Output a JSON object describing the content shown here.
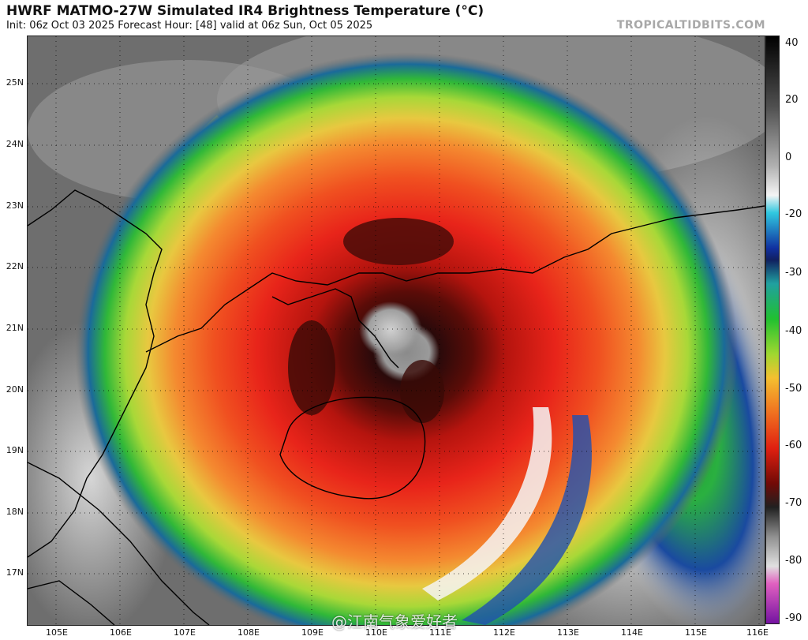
{
  "header": {
    "title": "HWRF MATMO-27W Simulated IR4 Brightness Temperature (°C)",
    "subtitle": "Init: 06z Oct 03 2025   Forecast Hour: [48]   valid at 06z Sun, Oct 05 2025",
    "brand": "TROPICALTIDBITS.COM"
  },
  "map": {
    "lat_labels": [
      "25N",
      "24N",
      "23N",
      "22N",
      "21N",
      "20N",
      "19N",
      "18N",
      "17N"
    ],
    "lon_labels": [
      "105E",
      "106E",
      "107E",
      "108E",
      "109E",
      "110E",
      "111E",
      "112E",
      "113E",
      "114E",
      "115E",
      "116E"
    ],
    "colors": {
      "background": "#6a6a6a",
      "coast": "#000000",
      "grid": "#000000"
    }
  },
  "colorbar": {
    "labels": [
      "40",
      "20",
      "0",
      "-20",
      "-30",
      "-40",
      "-50",
      "-60",
      "-70",
      "-80",
      "-90"
    ],
    "min": -90,
    "max": 40
  },
  "watermark": {
    "text": "@江南气象爱好者"
  }
}
